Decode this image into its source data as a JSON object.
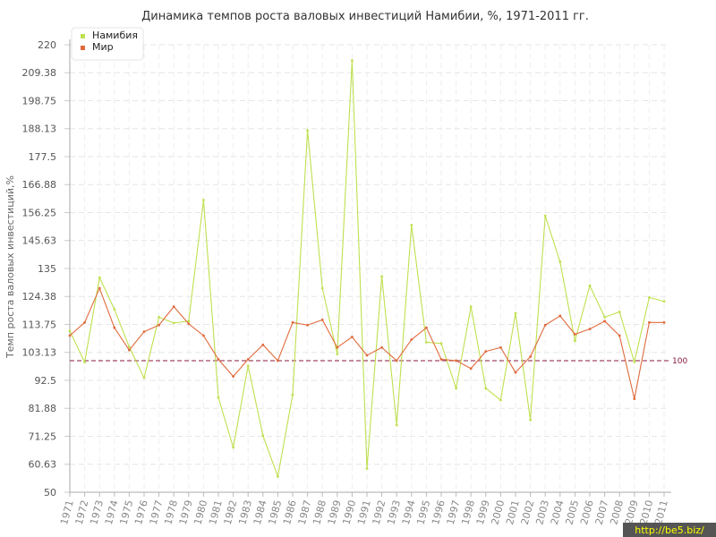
{
  "chart_data": {
    "type": "line",
    "title": "Динамика темпов роста валовых инвестиций Намибии, %, 1971-2011 гг.",
    "xlabel": "",
    "ylabel": "Темп роста валовых инвестиций,%",
    "ylim": [
      50,
      220
    ],
    "y_ticks": [
      "50",
      "60.63",
      "71.25",
      "81.88",
      "92.5",
      "103.13",
      "113.75",
      "124.38",
      "135",
      "145.63",
      "156.25",
      "166.88",
      "177.5",
      "188.13",
      "198.75",
      "209.38",
      "220"
    ],
    "grid": true,
    "legend_position": "top-left",
    "categories": [
      "1971",
      "1972",
      "1973",
      "1974",
      "1975",
      "1976",
      "1977",
      "1978",
      "1979",
      "1980",
      "1981",
      "1982",
      "1983",
      "1984",
      "1985",
      "1986",
      "1987",
      "1988",
      "1989",
      "1990",
      "1991",
      "1992",
      "1993",
      "1994",
      "1995",
      "1996",
      "1997",
      "1998",
      "1999",
      "2000",
      "2001",
      "2002",
      "2003",
      "2004",
      "2005",
      "2006",
      "2007",
      "2008",
      "2009",
      "2010",
      "2011"
    ],
    "series": [
      {
        "name": "Намибия",
        "color": "#bfe04f",
        "values": [
          111.3,
          99.4,
          131.6,
          119.5,
          105.2,
          93.5,
          116.5,
          114.3,
          115.0,
          161.0,
          86.0,
          67.0,
          98.0,
          71.5,
          56.0,
          87.0,
          187.5,
          127.5,
          102.5,
          214.0,
          59.0,
          132.0,
          75.5,
          151.5,
          107.0,
          106.5,
          89.5,
          120.5,
          89.5,
          85.0,
          118.0,
          77.5,
          155.0,
          137.5,
          107.5,
          128.5,
          116.5,
          118.5,
          99.5,
          124.0,
          122.5
        ]
      },
      {
        "name": "Мир",
        "color": "#e06a3d",
        "values": [
          109.5,
          114.5,
          127.5,
          112.5,
          104.0,
          111.0,
          113.5,
          120.5,
          114.0,
          109.5,
          100.5,
          94.0,
          100.5,
          106.0,
          100.0,
          114.5,
          113.5,
          115.5,
          105.0,
          109.0,
          102.0,
          105.0,
          100.0,
          108.0,
          112.5,
          100.5,
          100.0,
          97.0,
          103.5,
          105.0,
          95.5,
          101.5,
          113.5,
          117.0,
          110.0,
          112.0,
          115.0,
          109.5,
          85.5,
          114.5,
          114.5
        ]
      }
    ],
    "reference_line": {
      "value": 100,
      "label": "100",
      "color": "#8b1a3a"
    }
  },
  "watermark": "http://be5.biz/"
}
